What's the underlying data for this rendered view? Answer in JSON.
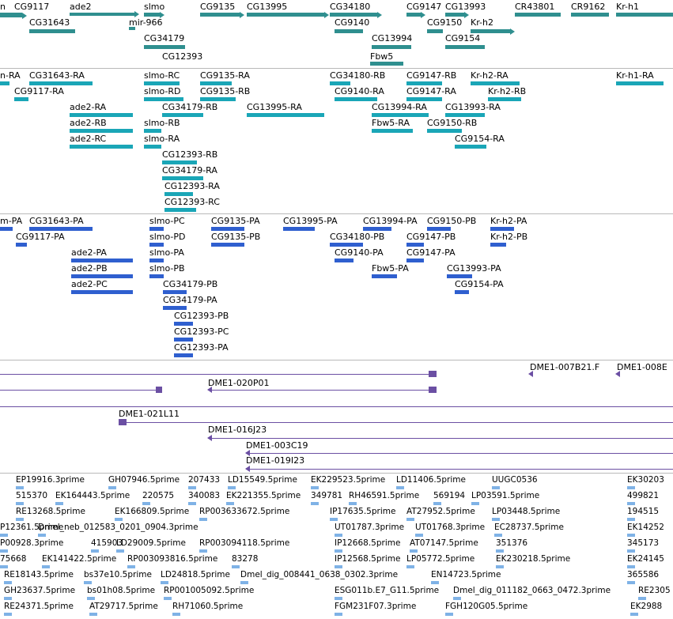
{
  "colors": {
    "gene": "#2f8f8f",
    "transcript": "#1aa6b7",
    "protein": "#2f5fcf",
    "bac": "#6b4fa3",
    "est": "#7fb2e6",
    "divider": "#b9b9b9"
  },
  "tracks": {
    "genes": {
      "labels": [
        "n",
        "CG9117",
        "ade2",
        "slmo",
        "CG9135",
        "CG13995",
        "CG34180",
        "CG9147",
        "CG13993",
        "CR43801",
        "CR9162",
        "Kr-h1",
        "CG31643",
        "mir-966",
        "CG9140",
        "CG9150",
        "Kr-h2",
        "CG34179",
        "CG13994",
        "CG9154",
        "CG12393",
        "Fbw5"
      ]
    },
    "transcripts": {
      "labels": [
        "n-RA",
        "CG31643-RA",
        "slmo-RC",
        "CG9135-RA",
        "CG34180-RB",
        "CG9147-RB",
        "Kr-h2-RA",
        "Kr-h1-RA",
        "CG9117-RA",
        "slmo-RD",
        "CG9135-RB",
        "CG9140-RA",
        "CG9147-RA",
        "Kr-h2-RB",
        "ade2-RA",
        "CG34179-RB",
        "CG13995-RA",
        "CG13994-RA",
        "CG13993-RA",
        "ade2-RB",
        "slmo-RB",
        "Fbw5-RA",
        "CG9150-RB",
        "ade2-RC",
        "slmo-RA",
        "CG9154-RA",
        "CG12393-RB",
        "CG34179-RA",
        "CG12393-RA",
        "CG12393-RC"
      ]
    },
    "proteins": {
      "labels": [
        "m-PA",
        "CG31643-PA",
        "slmo-PC",
        "CG9135-PA",
        "CG13995-PA",
        "CG13994-PA",
        "CG9150-PB",
        "Kr-h2-PA",
        "CG9117-PA",
        "slmo-PD",
        "CG9135-PB",
        "CG34180-PB",
        "CG9147-PB",
        "Kr-h2-PB",
        "ade2-PA",
        "slmo-PA",
        "CG9140-PA",
        "CG9147-PA",
        "ade2-PB",
        "slmo-PB",
        "Fbw5-PA",
        "CG13993-PA",
        "ade2-PC",
        "CG34179-PB",
        "CG9154-PA",
        "CG34179-PA",
        "CG12393-PB",
        "CG12393-PC",
        "CG12393-PA"
      ]
    },
    "bacs": {
      "labels": [
        "DME1-007B21.F",
        "DME1-008E",
        "DME1-020P01",
        "DME1-021L11",
        "DME1-016J23",
        "DME1-003C19",
        "DME1-019I23"
      ]
    },
    "ests": {
      "labels": [
        "EP19916.3prime",
        "GH07946.5prime",
        "207433",
        "LD15549.5prime",
        "EK229523.5prime",
        "LD11406.5prime",
        "UUGC0536",
        "EK30203",
        "515370",
        "EK164443.5prime",
        "220575",
        "340083",
        "EK221355.5prime",
        "349781",
        "RH46591.5prime",
        "569194",
        "LP03591.5prime",
        "499821",
        "RE13268.5prime",
        "EK166809.5prime",
        "RP003633672.5prime",
        "IP17635.5prime",
        "AT27952.5prime",
        "LP03448.5prime",
        "194515",
        "P12361.5prime",
        "Dmel_neb_012583_0201_0904.3prime",
        "UT01787.3prime",
        "UT01768.3prime",
        "EC28737.5prime",
        "EK14252",
        "P00928.3prime",
        "415903",
        "LD29009.5prime",
        "RP003094118.5prime",
        "IP12668.5prime",
        "AT07147.5prime",
        "351376",
        "345173",
        "75668",
        "EK141422.5prime",
        "RP003093816.5prime",
        "83278",
        "IP12568.5prime",
        "LP05772.5prime",
        "EK230218.5prime",
        "EK24145",
        "RE18143.5prime",
        "bs37e10.5prime",
        "LD24818.5prime",
        "Dmel_dig_008441_0638_0302.3prime",
        "EN14723.5prime",
        "365586",
        "GH23637.5prime",
        "bs01h08.5prime",
        "RP001005092.5prime",
        "ESG011b.E7_G11.5prime",
        "Dmel_dig_011182_0663_0472.3prime",
        "RE2305",
        "RE24371.5prime",
        "AT29717.5prime",
        "RH71060.5prime",
        "FGM231F07.3prime",
        "FGH120G05.5prime",
        "EK2988"
      ]
    }
  }
}
